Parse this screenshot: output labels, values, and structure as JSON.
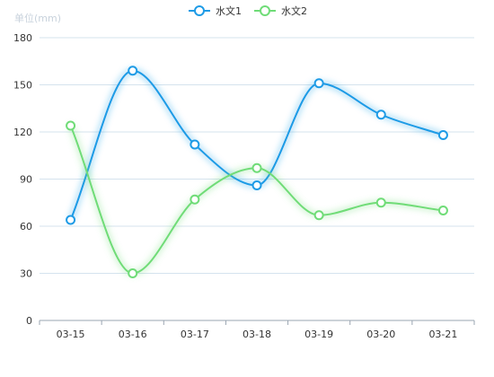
{
  "chart_data": {
    "type": "line",
    "unit_label": "单位(mm)",
    "categories": [
      "03-15",
      "03-16",
      "03-17",
      "03-18",
      "03-19",
      "03-20",
      "03-21"
    ],
    "ylim": [
      0,
      180
    ],
    "yticks": [
      0,
      30,
      60,
      90,
      120,
      150,
      180
    ],
    "grid": true,
    "legend_position": "top-center",
    "smooth": true,
    "series": [
      {
        "name": "水文1",
        "color": "#1e9be6",
        "values": [
          64,
          159,
          112,
          86,
          151,
          131,
          118
        ]
      },
      {
        "name": "水文2",
        "color": "#6fdc77",
        "values": [
          124,
          30,
          77,
          97,
          67,
          75,
          70
        ]
      }
    ]
  }
}
